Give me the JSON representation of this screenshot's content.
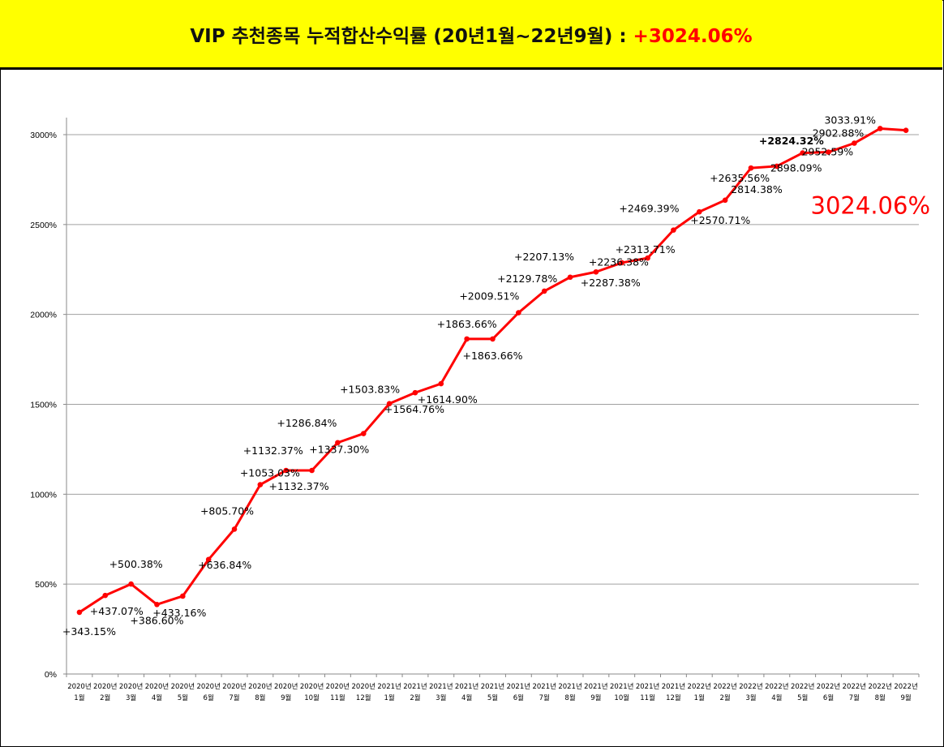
{
  "header": {
    "title": "VIP 추천종목 누적합산수익률 (20년1월~22년9월) : ",
    "highlight": "+3024.06%",
    "highlight_color": "#ff0000",
    "background": "#ffff00"
  },
  "chart_data": {
    "type": "line",
    "title": "",
    "xlabel": "",
    "ylabel": "",
    "ylim": [
      0,
      3000
    ],
    "yticks": [
      "0%",
      "500%",
      "1000%",
      "1500%",
      "2000%",
      "2500%",
      "3000%"
    ],
    "grid": true,
    "line_color": "#ff0000",
    "categories": [
      [
        "2020년",
        "1월"
      ],
      [
        "2020년",
        "2월"
      ],
      [
        "2020년",
        "3월"
      ],
      [
        "2020년",
        "4월"
      ],
      [
        "2020년",
        "5월"
      ],
      [
        "2020년",
        "6월"
      ],
      [
        "2020년",
        "7월"
      ],
      [
        "2020년",
        "8월"
      ],
      [
        "2020년",
        "9월"
      ],
      [
        "2020년",
        "10월"
      ],
      [
        "2020년",
        "11월"
      ],
      [
        "2020년",
        "12월"
      ],
      [
        "2021년",
        "1월"
      ],
      [
        "2021년",
        "2월"
      ],
      [
        "2021년",
        "3월"
      ],
      [
        "2021년",
        "4월"
      ],
      [
        "2021년",
        "5월"
      ],
      [
        "2021년",
        "6월"
      ],
      [
        "2021년",
        "7월"
      ],
      [
        "2021년",
        "8월"
      ],
      [
        "2021년",
        "9월"
      ],
      [
        "2021년",
        "10월"
      ],
      [
        "2021년",
        "11월"
      ],
      [
        "2021년",
        "12월"
      ],
      [
        "2022년",
        "1월"
      ],
      [
        "2022년",
        "2월"
      ],
      [
        "2022년",
        "3월"
      ],
      [
        "2022년",
        "4월"
      ],
      [
        "2022년",
        "5월"
      ],
      [
        "2022년",
        "6월"
      ],
      [
        "2022년",
        "7월"
      ],
      [
        "2022년",
        "8월"
      ],
      [
        "2022년",
        "9월"
      ]
    ],
    "values": [
      343.15,
      437.07,
      500.38,
      386.6,
      433.16,
      636.84,
      805.7,
      1053.03,
      1132.37,
      1132.37,
      1286.84,
      1337.3,
      1503.83,
      1564.76,
      1614.9,
      1863.66,
      1863.66,
      2009.51,
      2129.78,
      2207.13,
      2236.38,
      2287.38,
      2313.71,
      2469.39,
      2570.71,
      2635.56,
      2814.38,
      2824.32,
      2898.09,
      2902.88,
      2952.59,
      3033.91,
      3024.06
    ],
    "data_labels": [
      "+343.15%",
      "+437.07%",
      "+500.38%",
      "+386.60%",
      "+433.16%",
      "+636.84%",
      "+805.70%",
      "+1053.03%",
      "+1132.37%",
      "+1132.37%",
      "+1286.84%",
      "+1337.30%",
      "+1503.83%",
      "+1564.76%",
      "+1614.90%",
      "+1863.66%",
      "+1863.66%",
      "+2009.51%",
      "+2129.78%",
      "+2207.13%",
      "+2236.38%",
      "+2287.38%",
      "+2313.71%",
      "+2469.39%",
      "+2570.71%",
      "+2635.56%",
      "2814.38%",
      "+2824.32%",
      "2898.09%",
      "2902.88%",
      "2952.59%",
      "3033.91%",
      ""
    ],
    "annotation": "3024.06%"
  }
}
